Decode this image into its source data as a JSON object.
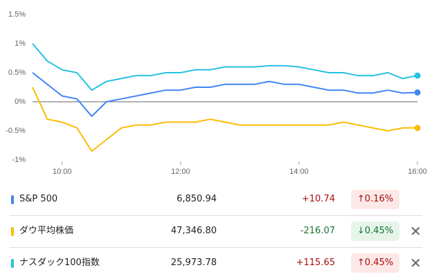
{
  "chart_data": {
    "type": "line",
    "x": [
      9.5,
      9.75,
      10,
      10.25,
      10.5,
      10.75,
      11,
      11.25,
      11.5,
      11.75,
      12,
      12.25,
      12.5,
      12.75,
      13,
      13.25,
      13.5,
      13.75,
      14,
      14.25,
      14.5,
      14.75,
      15,
      15.25,
      15.5,
      15.75,
      16
    ],
    "xlim": [
      9.5,
      16
    ],
    "xticks": [
      {
        "value": 10,
        "label": "10:00"
      },
      {
        "value": 12,
        "label": "12:00"
      },
      {
        "value": 14,
        "label": "14:00"
      },
      {
        "value": 16,
        "label": "16:00"
      }
    ],
    "ylim": [
      -1,
      1.5
    ],
    "yticks": [
      {
        "value": 1.5,
        "label": "1.5%"
      },
      {
        "value": 1,
        "label": "1%"
      },
      {
        "value": 0.5,
        "label": "0.5%"
      },
      {
        "value": 0,
        "label": "0%"
      },
      {
        "value": -0.5,
        "label": "-0.5%"
      },
      {
        "value": -1,
        "label": "-1%"
      }
    ],
    "series": [
      {
        "name": "S&P 500",
        "color": "#4285f4",
        "values": [
          0.5,
          0.3,
          0.1,
          0.05,
          -0.25,
          0.0,
          0.05,
          0.1,
          0.15,
          0.2,
          0.2,
          0.25,
          0.25,
          0.3,
          0.3,
          0.3,
          0.35,
          0.3,
          0.3,
          0.25,
          0.2,
          0.2,
          0.15,
          0.15,
          0.2,
          0.15,
          0.16
        ]
      },
      {
        "name": "ダウ平均株価",
        "color": "#fbbc04",
        "values": [
          0.25,
          -0.3,
          -0.35,
          -0.45,
          -0.85,
          -0.65,
          -0.45,
          -0.4,
          -0.4,
          -0.35,
          -0.35,
          -0.35,
          -0.3,
          -0.35,
          -0.4,
          -0.4,
          -0.4,
          -0.4,
          -0.4,
          -0.4,
          -0.4,
          -0.35,
          -0.4,
          -0.45,
          -0.5,
          -0.45,
          -0.45
        ]
      },
      {
        "name": "ナスダック100指数",
        "color": "#24c1e0",
        "values": [
          1.0,
          0.7,
          0.55,
          0.5,
          0.2,
          0.35,
          0.4,
          0.45,
          0.45,
          0.5,
          0.5,
          0.55,
          0.55,
          0.6,
          0.6,
          0.6,
          0.62,
          0.62,
          0.6,
          0.55,
          0.5,
          0.5,
          0.45,
          0.45,
          0.5,
          0.4,
          0.45
        ]
      }
    ]
  },
  "table": {
    "rows": [
      [
        "S&P 500",
        "6,850.94",
        "+10.74",
        "↑0.16%"
      ],
      [
        "ダウ平均株価",
        "47,346.80",
        "-216.07",
        "↓0.45%"
      ],
      [
        "ナスダック100指数",
        "25,973.78",
        "+115.65",
        "↑0.45%"
      ]
    ]
  }
}
